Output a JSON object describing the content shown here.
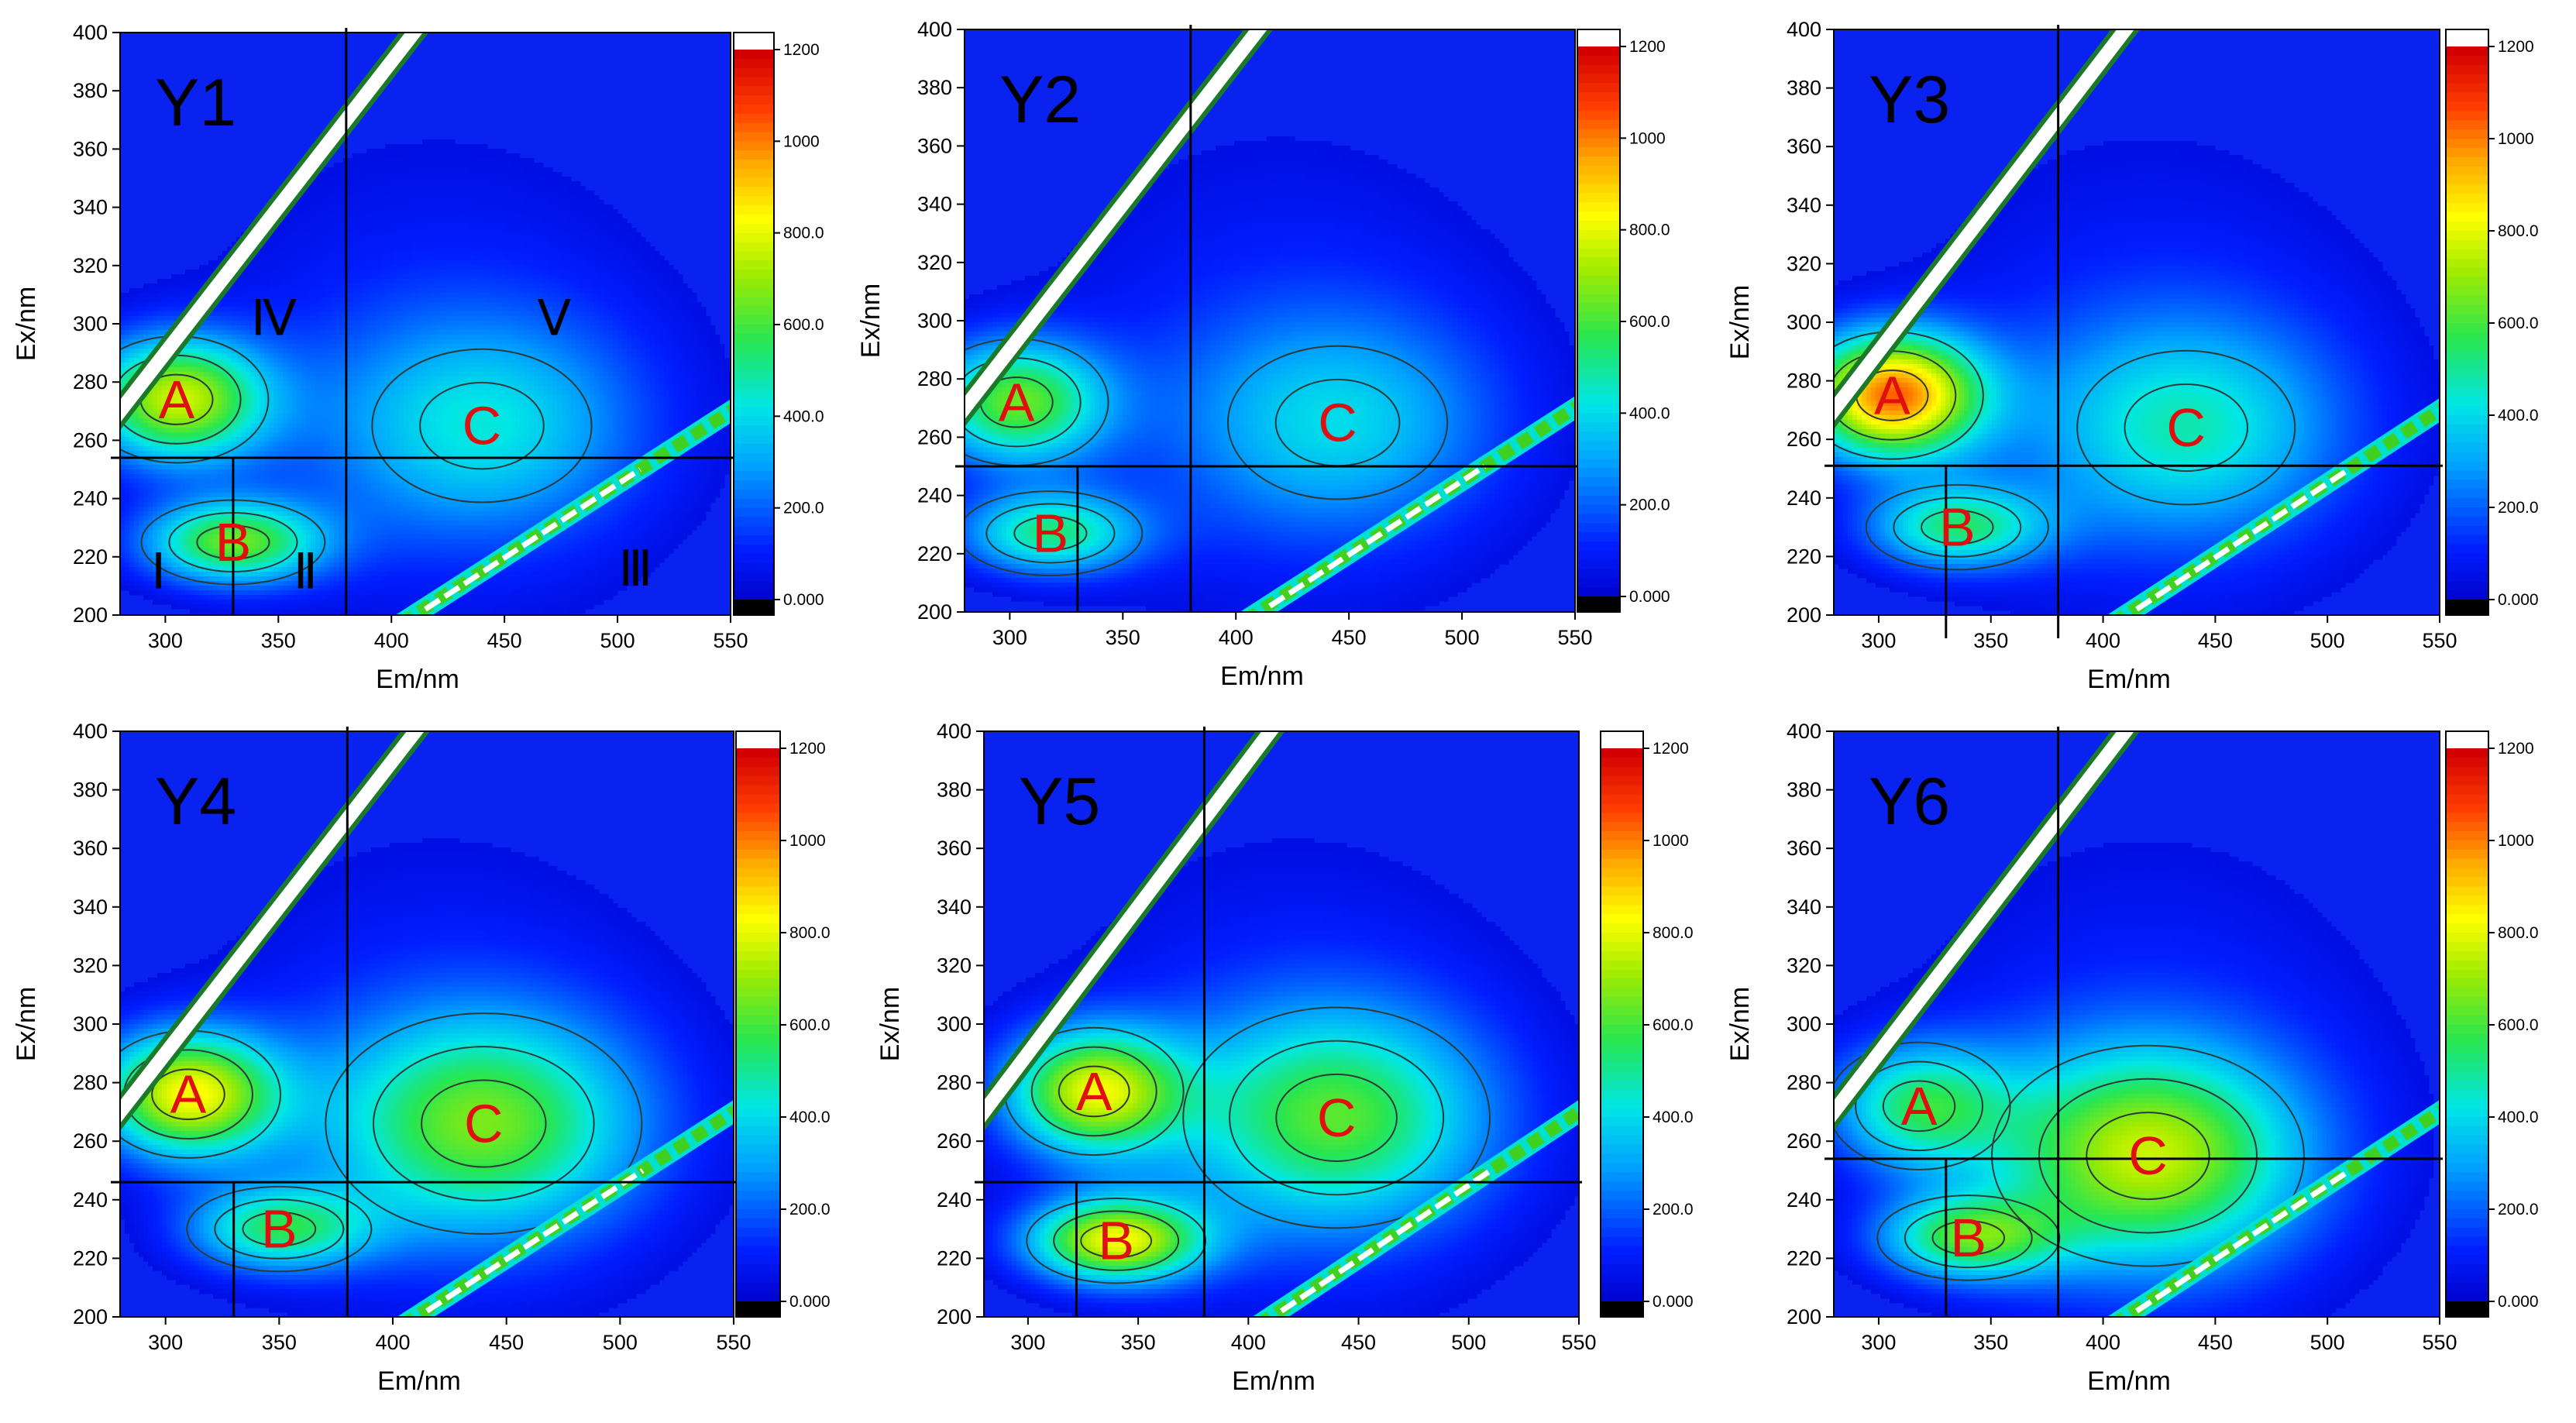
{
  "figure": {
    "axis_labels": {
      "x": "Em/nm",
      "y": "Ex/nm"
    },
    "x_ticks": [
      "300",
      "350",
      "400",
      "450",
      "500",
      "550"
    ],
    "y_ticks": [
      "200",
      "220",
      "240",
      "260",
      "280",
      "300",
      "320",
      "340",
      "360",
      "380",
      "400"
    ],
    "colorbar_ticks": [
      "0.000",
      "200.0",
      "400.0",
      "600.0",
      "800.0",
      "1000",
      "1200"
    ],
    "colors": {
      "background": "#0a22f0",
      "region_label": "#e01010",
      "divider": "#000000",
      "contour_line": "#2c3a3a"
    }
  },
  "chart_data": [
    {
      "type": "heatmap",
      "title": "Y1",
      "xlim": [
        280,
        550
      ],
      "ylim": [
        200,
        400
      ],
      "clim": [
        0,
        1200
      ],
      "xlabel": "Em/nm",
      "ylabel": "Ex/nm",
      "dividers": {
        "em_vertical": 380,
        "ex_horizontal": 254,
        "em_lower_vertical": 330
      },
      "peaks": [
        {
          "label": "A",
          "em": 305,
          "ex": 274,
          "intensity": 720
        },
        {
          "label": "B",
          "em": 330,
          "ex": 225,
          "intensity": 600
        },
        {
          "label": "C",
          "em": 440,
          "ex": 265,
          "intensity": 330
        }
      ],
      "regions": [
        {
          "label": "Ⅰ",
          "em": 297,
          "ex": 215
        },
        {
          "label": "Ⅱ",
          "em": 362,
          "ex": 215
        },
        {
          "label": "Ⅲ",
          "em": 508,
          "ex": 216
        },
        {
          "label": "Ⅳ",
          "em": 348,
          "ex": 302
        },
        {
          "label": "Ⅴ",
          "em": 472,
          "ex": 302
        }
      ]
    },
    {
      "type": "heatmap",
      "title": "Y2",
      "xlim": [
        280,
        550
      ],
      "ylim": [
        200,
        400
      ],
      "clim": [
        0,
        1200
      ],
      "xlabel": "Em/nm",
      "ylabel": "Ex/nm",
      "dividers": {
        "em_vertical": 380,
        "ex_horizontal": 250,
        "em_lower_vertical": 330
      },
      "peaks": [
        {
          "label": "A",
          "em": 303,
          "ex": 272,
          "intensity": 600
        },
        {
          "label": "B",
          "em": 318,
          "ex": 227,
          "intensity": 480
        },
        {
          "label": "C",
          "em": 445,
          "ex": 265,
          "intensity": 300
        }
      ],
      "regions": []
    },
    {
      "type": "heatmap",
      "title": "Y3",
      "xlim": [
        280,
        550
      ],
      "ylim": [
        200,
        400
      ],
      "clim": [
        0,
        1200
      ],
      "xlabel": "Em/nm",
      "ylabel": "Ex/nm",
      "dividers": {
        "em_vertical": 380,
        "ex_horizontal": 251,
        "em_lower_vertical": 330
      },
      "peaks": [
        {
          "label": "A",
          "em": 306,
          "ex": 275,
          "intensity": 980
        },
        {
          "label": "B",
          "em": 335,
          "ex": 230,
          "intensity": 470
        },
        {
          "label": "C",
          "em": 437,
          "ex": 264,
          "intensity": 370
        }
      ],
      "regions": []
    },
    {
      "type": "heatmap",
      "title": "Y4",
      "xlim": [
        280,
        550
      ],
      "ylim": [
        200,
        400
      ],
      "clim": [
        0,
        1200
      ],
      "xlabel": "Em/nm",
      "ylabel": "Ex/nm",
      "dividers": {
        "em_vertical": 380,
        "ex_horizontal": 246,
        "em_lower_vertical": 330
      },
      "peaks": [
        {
          "label": "A",
          "em": 310,
          "ex": 276,
          "intensity": 780
        },
        {
          "label": "B",
          "em": 350,
          "ex": 230,
          "intensity": 470
        },
        {
          "label": "C",
          "em": 440,
          "ex": 266,
          "intensity": 560
        }
      ],
      "regions": []
    },
    {
      "type": "heatmap",
      "title": "Y5",
      "xlim": [
        280,
        550
      ],
      "ylim": [
        200,
        400
      ],
      "clim": [
        0,
        1200
      ],
      "xlabel": "Em/nm",
      "ylabel": "Ex/nm",
      "dividers": {
        "em_vertical": 380,
        "ex_horizontal": 246,
        "em_lower_vertical": 322
      },
      "peaks": [
        {
          "label": "A",
          "em": 330,
          "ex": 277,
          "intensity": 720
        },
        {
          "label": "B",
          "em": 340,
          "ex": 226,
          "intensity": 760
        },
        {
          "label": "C",
          "em": 440,
          "ex": 268,
          "intensity": 520
        }
      ],
      "regions": []
    },
    {
      "type": "heatmap",
      "title": "Y6",
      "xlim": [
        280,
        550
      ],
      "ylim": [
        200,
        400
      ],
      "clim": [
        0,
        1200
      ],
      "xlabel": "Em/nm",
      "ylabel": "Ex/nm",
      "dividers": {
        "em_vertical": 380,
        "ex_horizontal": 254,
        "em_lower_vertical": 330
      },
      "peaks": [
        {
          "label": "A",
          "em": 318,
          "ex": 272,
          "intensity": 470
        },
        {
          "label": "B",
          "em": 340,
          "ex": 227,
          "intensity": 520
        },
        {
          "label": "C",
          "em": 420,
          "ex": 255,
          "intensity": 660
        }
      ],
      "regions": []
    }
  ]
}
